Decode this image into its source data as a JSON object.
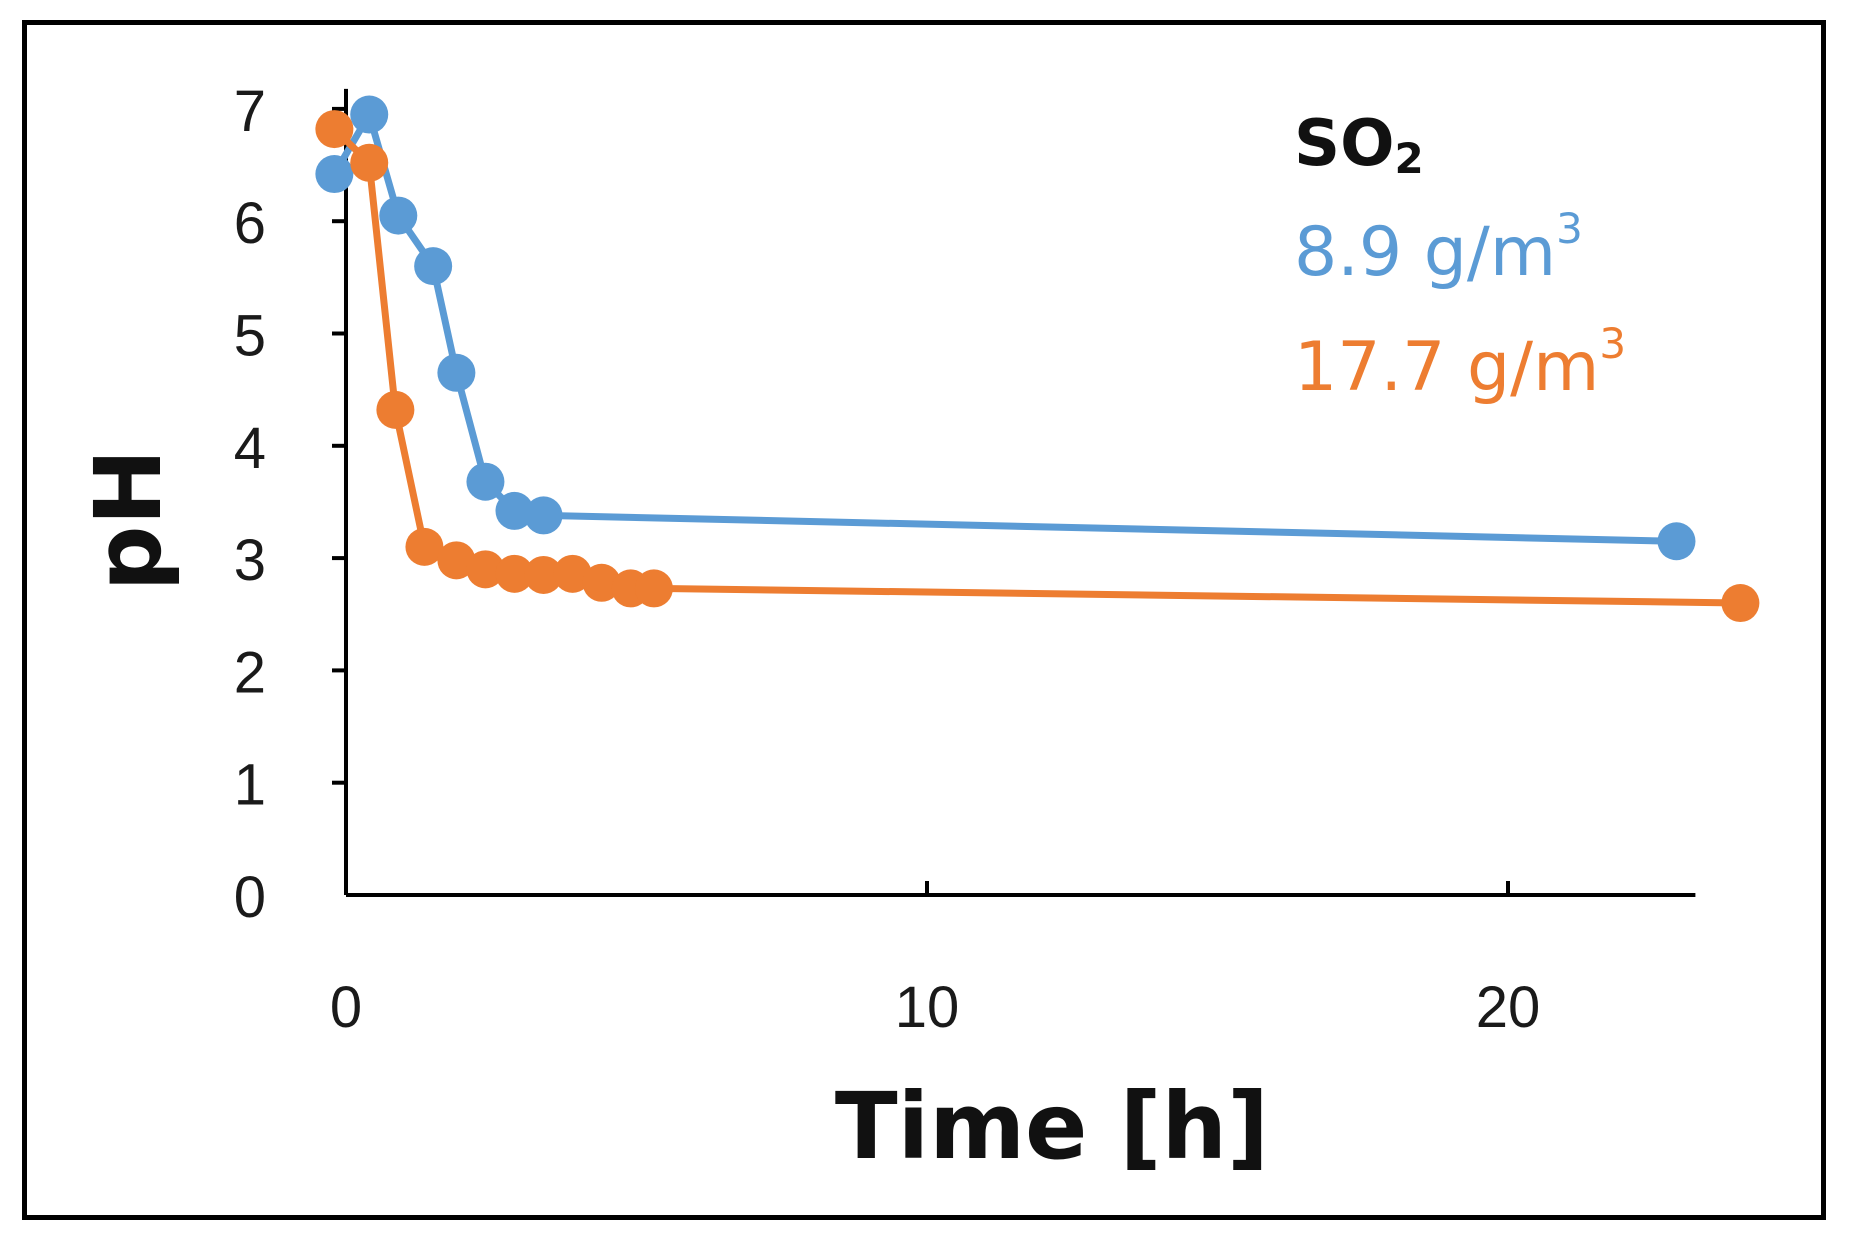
{
  "chart_data": {
    "type": "line",
    "title": "",
    "xlabel": "Time [h]",
    "ylabel": "pH",
    "xlim": [
      0,
      24
    ],
    "ylim": [
      0,
      7
    ],
    "xticks": [
      0,
      10,
      20
    ],
    "yticks": [
      0,
      1,
      2,
      3,
      4,
      5,
      6,
      7
    ],
    "grid": false,
    "legend": {
      "placement": "top-right",
      "title": "SO",
      "title_sub": "2",
      "entries": [
        {
          "value": "8.9 g/m",
          "sup": "3"
        },
        {
          "value": "17.7 g/m",
          "sup": "3"
        }
      ]
    },
    "series": [
      {
        "name": "8.9 g/m3",
        "color": "#5B9BD5",
        "x": [
          -0.2,
          0.4,
          0.9,
          1.5,
          1.9,
          2.4,
          2.9,
          3.4,
          22.9
        ],
        "y": [
          6.42,
          6.95,
          6.05,
          5.6,
          4.65,
          3.68,
          3.42,
          3.38,
          3.15
        ]
      },
      {
        "name": "17.7 g/m3",
        "color": "#ED7D31",
        "x": [
          -0.2,
          0.4,
          0.85,
          1.35,
          1.9,
          2.4,
          2.9,
          3.4,
          3.9,
          4.4,
          4.9,
          5.3,
          24.0
        ],
        "y": [
          6.82,
          6.52,
          4.32,
          3.1,
          2.98,
          2.9,
          2.86,
          2.85,
          2.86,
          2.78,
          2.73,
          2.73,
          2.6
        ]
      }
    ]
  }
}
